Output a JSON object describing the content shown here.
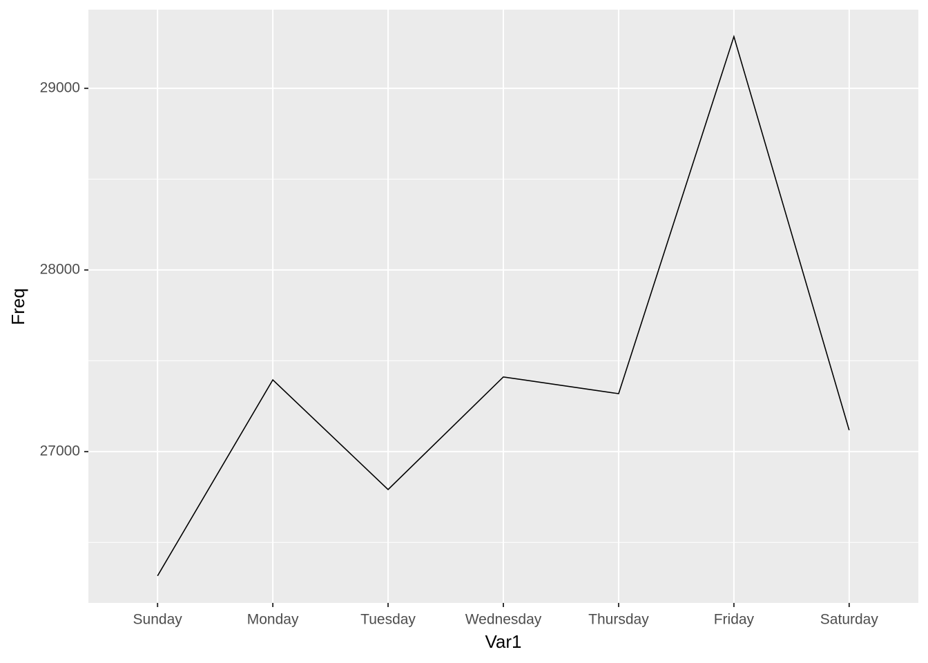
{
  "chart_data": {
    "type": "line",
    "x_label": "Var1",
    "y_label": "Freq",
    "categories": [
      "Sunday",
      "Monday",
      "Tuesday",
      "Wednesday",
      "Thursday",
      "Friday",
      "Saturday"
    ],
    "values": [
      26316,
      27395,
      26791,
      27411,
      27319,
      29285,
      27118
    ],
    "color": "#000000",
    "ylim": [
      26167,
      29433
    ],
    "yticks": [
      27000,
      28000,
      29000
    ],
    "minor_yticks": [
      26500,
      27500,
      28500
    ],
    "grid": true
  }
}
